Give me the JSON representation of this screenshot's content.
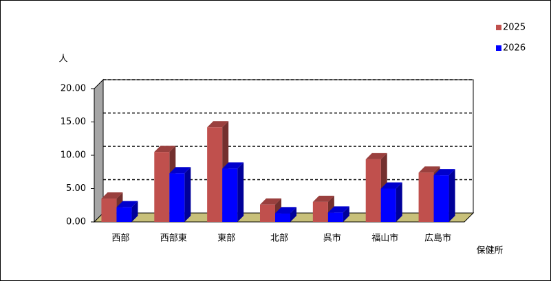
{
  "chart_data": {
    "type": "bar3d",
    "y_label": "人",
    "x_label": "保健所",
    "categories": [
      "西部",
      "西部東",
      "東部",
      "北部",
      "呉市",
      "福山市",
      "広島市"
    ],
    "series": [
      {
        "name": "2025",
        "color": "#c0504d",
        "values": [
          3.5,
          10.5,
          14.2,
          2.6,
          3.0,
          9.4,
          7.4
        ]
      },
      {
        "name": "2026",
        "color": "#0000ff",
        "values": [
          2.2,
          7.3,
          8.0,
          1.3,
          1.4,
          5.0,
          7.0
        ]
      }
    ],
    "ylim": [
      0,
      20
    ],
    "yticks": [
      {
        "value": 0,
        "label": "0.00"
      },
      {
        "value": 5,
        "label": "5.00"
      },
      {
        "value": 10,
        "label": "10.00"
      },
      {
        "value": 15,
        "label": "15.00"
      },
      {
        "value": 20,
        "label": "20.00"
      }
    ],
    "grid": true,
    "legend": "top-right"
  }
}
